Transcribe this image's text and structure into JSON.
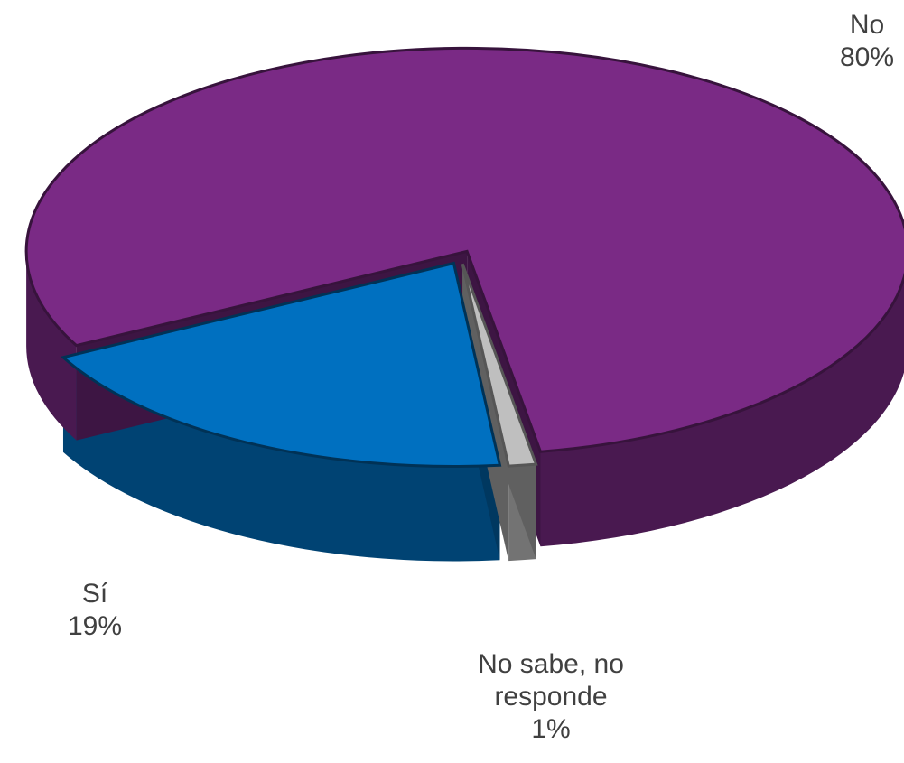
{
  "chart_data": {
    "type": "pie",
    "categories": [
      "Sí",
      "No",
      "No sabe, no responde"
    ],
    "values": [
      19,
      80,
      1
    ],
    "value_labels": [
      "19%",
      "80%",
      "1%"
    ],
    "colors": [
      "#0070c0",
      "#7a2a85",
      "#bfbfbf"
    ]
  }
}
